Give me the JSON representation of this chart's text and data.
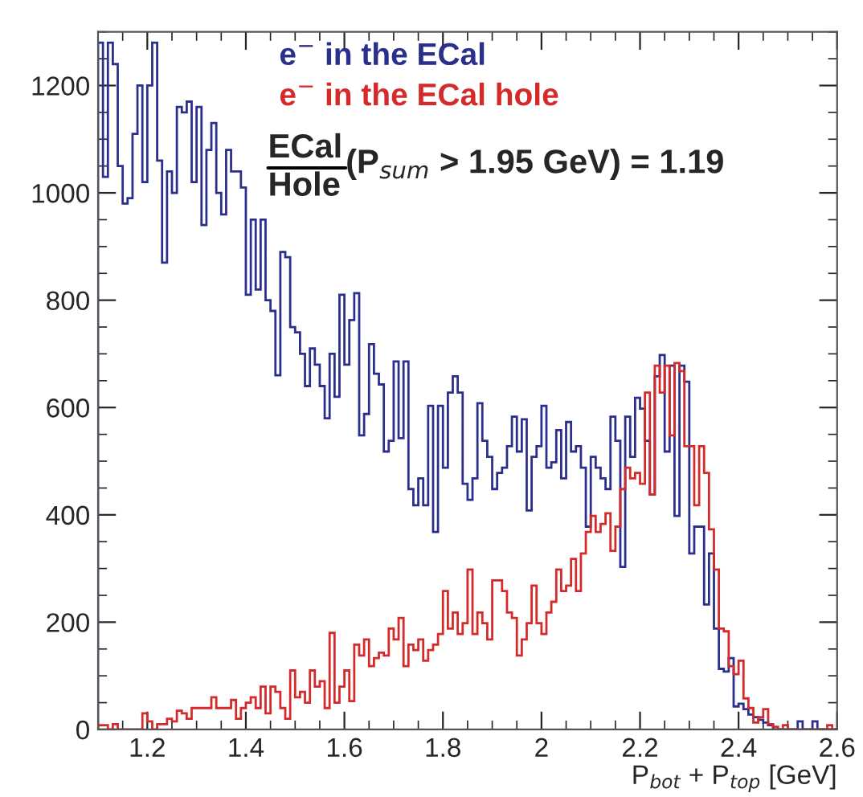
{
  "chart_data": {
    "type": "histogram",
    "bins": [
      1.1,
      1.11,
      1.12,
      1.13,
      1.14,
      1.15,
      1.16,
      1.17,
      1.18,
      1.19,
      1.2,
      1.21,
      1.22,
      1.23,
      1.24,
      1.25,
      1.26,
      1.27,
      1.28,
      1.29,
      1.3,
      1.31,
      1.32,
      1.33,
      1.34,
      1.35,
      1.36,
      1.37,
      1.38,
      1.39,
      1.4,
      1.41,
      1.42,
      1.43,
      1.44,
      1.45,
      1.46,
      1.47,
      1.48,
      1.49,
      1.5,
      1.51,
      1.52,
      1.53,
      1.54,
      1.55,
      1.56,
      1.57,
      1.58,
      1.59,
      1.6,
      1.61,
      1.62,
      1.63,
      1.64,
      1.65,
      1.66,
      1.67,
      1.68,
      1.69,
      1.7,
      1.71,
      1.72,
      1.73,
      1.74,
      1.75,
      1.76,
      1.77,
      1.78,
      1.79,
      1.8,
      1.81,
      1.82,
      1.83,
      1.84,
      1.85,
      1.86,
      1.87,
      1.88,
      1.89,
      1.9,
      1.91,
      1.92,
      1.93,
      1.94,
      1.95,
      1.96,
      1.97,
      1.98,
      1.99,
      2.0,
      2.01,
      2.02,
      2.03,
      2.04,
      2.05,
      2.06,
      2.07,
      2.08,
      2.09,
      2.1,
      2.11,
      2.12,
      2.13,
      2.14,
      2.15,
      2.16,
      2.17,
      2.18,
      2.19,
      2.2,
      2.21,
      2.22,
      2.23,
      2.24,
      2.25,
      2.26,
      2.27,
      2.28,
      2.29,
      2.3,
      2.31,
      2.32,
      2.33,
      2.34,
      2.35,
      2.36,
      2.37,
      2.38,
      2.39,
      2.4,
      2.41,
      2.42,
      2.43,
      2.44,
      2.45,
      2.46,
      2.47,
      2.48,
      2.49,
      2.5,
      2.51,
      2.52,
      2.53,
      2.54,
      2.55,
      2.56,
      2.57,
      2.58,
      2.59,
      2.6
    ],
    "series": [
      {
        "name": "e$^{−}$ in the ECal",
        "color": "#2b2f8c",
        "values": [
          1280,
          1030,
          1280,
          1240,
          1050,
          980,
          990,
          1110,
          1200,
          1020,
          1200,
          1280,
          1060,
          870,
          1040,
          1000,
          1160,
          1150,
          1170,
          1020,
          1160,
          940,
          1080,
          1130,
          1000,
          960,
          1080,
          1040,
          1040,
          1010,
          810,
          950,
          820,
          950,
          800,
          780,
          660,
          890,
          880,
          750,
          740,
          700,
          640,
          710,
          680,
          640,
          580,
          700,
          620,
          810,
          680,
          763,
          813,
          548,
          588,
          718,
          663,
          643,
          518,
          538,
          686,
          543,
          686,
          448,
          418,
          468,
          418,
          603,
          368,
          603,
          488,
          628,
          658,
          628,
          458,
          428,
          468,
          608,
          538,
          508,
          448,
          478,
          488,
          528,
          583,
          518,
          578,
          408,
          508,
          528,
          603,
          488,
          498,
          558,
          468,
          573,
          518,
          528,
          488,
          378,
          508,
          488,
          468,
          448,
          583,
          538,
          303,
          583,
          508,
          618,
          598,
          538,
          438,
          658,
          698,
          518,
          678,
          398,
          678,
          648,
          328,
          378,
          378,
          233,
          328,
          188,
          113,
          108,
          133,
          43,
          48,
          38,
          28,
          23,
          18,
          13,
          8,
          0,
          0,
          0,
          0,
          0,
          15,
          0,
          0,
          15,
          0,
          0,
          0,
          0
        ]
      },
      {
        "name": "e$^{−}$ in the ECal hole",
        "color": "#d42a2a",
        "values": [
          8,
          8,
          0,
          10,
          0,
          0,
          0,
          0,
          0,
          30,
          15,
          0,
          10,
          10,
          20,
          15,
          35,
          30,
          20,
          40,
          40,
          40,
          40,
          60,
          40,
          40,
          40,
          55,
          20,
          40,
          50,
          60,
          40,
          80,
          30,
          80,
          70,
          40,
          20,
          110,
          60,
          70,
          50,
          110,
          80,
          90,
          40,
          180,
          50,
          80,
          110,
          53,
          158,
          138,
          168,
          118,
          133,
          143,
          138,
          188,
          168,
          208,
          118,
          158,
          148,
          168,
          128,
          148,
          158,
          178,
          258,
          188,
          218,
          178,
          198,
          298,
          178,
          218,
          198,
          168,
          278,
          278,
          258,
          218,
          208,
          138,
          168,
          198,
          268,
          198,
          178,
          218,
          238,
          298,
          258,
          268,
          318,
          258,
          328,
          368,
          398,
          368,
          383,
          403,
          333,
          378,
          448,
          488,
          468,
          478,
          458,
          628,
          438,
          678,
          628,
          678,
          548,
          683,
          668,
          528,
          528,
          418,
          528,
          478,
          373,
          298,
          188,
          183,
          118,
          103,
          128,
          58,
          40,
          13,
          23,
          38,
          10,
          5,
          0,
          8,
          0,
          0,
          0,
          0,
          0,
          0,
          0,
          0,
          8,
          0
        ]
      }
    ],
    "xlim": [
      1.1,
      2.6
    ],
    "ylim": [
      0,
      1300
    ],
    "xticks": [
      1.2,
      1.4,
      1.6,
      1.8,
      2,
      2.2,
      2.4,
      2.6
    ],
    "yticks": [
      0,
      200,
      400,
      600,
      800,
      1000,
      1200
    ],
    "xlabel": "P$_{bot}$ + P$_{top}$ [GeV]",
    "annotations": [
      "ECal",
      "Hole",
      "(P$_{sum}$ > 1.95 GeV) = 1.19"
    ],
    "grid": false,
    "legend": false
  }
}
